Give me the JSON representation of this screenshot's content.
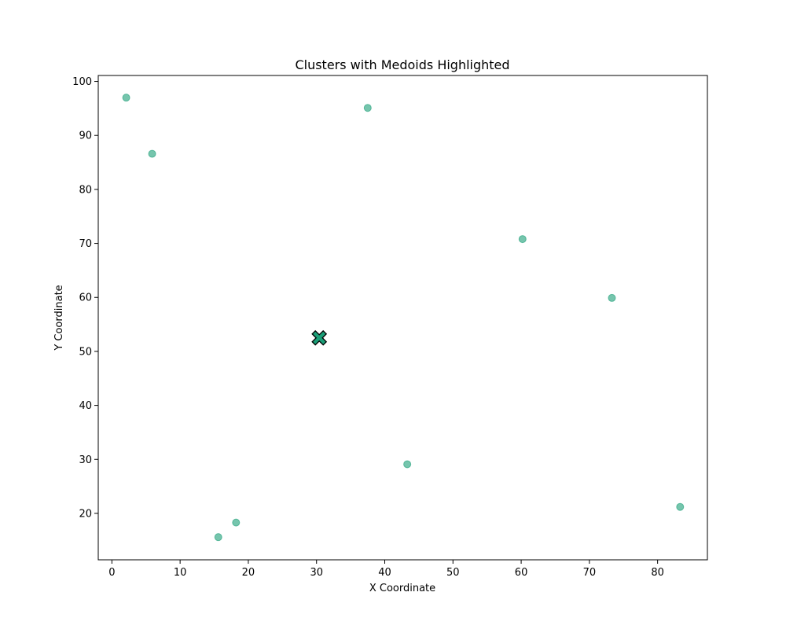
{
  "chart_data": {
    "type": "scatter",
    "title": "Clusters with Medoids Highlighted",
    "xlabel": "X Coordinate",
    "ylabel": "Y Coordinate",
    "xlim": [
      -2.0,
      87.3
    ],
    "ylim": [
      11.4,
      101.1
    ],
    "xticks": [
      0,
      10,
      20,
      30,
      40,
      50,
      60,
      70,
      80
    ],
    "yticks": [
      20,
      30,
      40,
      50,
      60,
      70,
      80,
      90,
      100
    ],
    "grid": false,
    "series": [
      {
        "marker": "circle",
        "color": "#1b9e77",
        "alpha": 0.6,
        "points": [
          {
            "x": 2.1,
            "y": 97.0
          },
          {
            "x": 5.9,
            "y": 86.6
          },
          {
            "x": 37.5,
            "y": 95.1
          },
          {
            "x": 60.2,
            "y": 70.8
          },
          {
            "x": 73.3,
            "y": 59.9
          },
          {
            "x": 43.3,
            "y": 29.1
          },
          {
            "x": 83.3,
            "y": 21.2
          },
          {
            "x": 18.2,
            "y": 18.3
          },
          {
            "x": 15.6,
            "y": 15.6
          }
        ]
      },
      {
        "marker": "X",
        "color": "#1b9e77",
        "edge_color": "#000000",
        "role": "medoid",
        "points": [
          {
            "x": 30.4,
            "y": 52.5
          }
        ]
      }
    ]
  }
}
